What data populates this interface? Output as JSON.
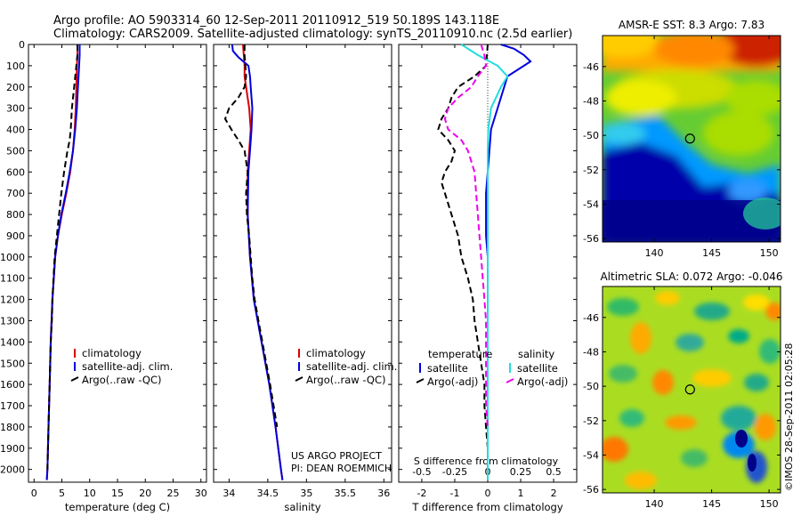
{
  "header": {
    "line1": "Argo profile: AO 5903314_60 12-Sep-2011 20110912_519 50.189S 143.118E",
    "line2": "Climatology: CARS2009. Satellite-adjusted climatology: synTS_20110910.nc (2.5d earlier)"
  },
  "colors": {
    "climatology": "#dd0000",
    "satellite": "#0000dd",
    "argo": "#000000",
    "satellite_s": "#22dddd",
    "argo_s": "#ee00ee"
  },
  "depth_axis": {
    "ticks": [
      0,
      100,
      200,
      300,
      400,
      500,
      600,
      700,
      800,
      900,
      1000,
      1100,
      1200,
      1300,
      1400,
      1500,
      1600,
      1700,
      1800,
      1900,
      2000
    ],
    "ylim": [
      0,
      2060
    ],
    "inverted": true
  },
  "project": {
    "line1": "US ARGO PROJECT",
    "line2": "PI: DEAN ROEMMICH"
  },
  "credit": "©IMOS 28-Sep-2011 02:05:28",
  "chart_data": [
    {
      "type": "line",
      "title": "",
      "xlabel": "temperature (deg C)",
      "ylabel": "",
      "xlim": [
        -1,
        31
      ],
      "xticks": [
        0,
        5,
        10,
        15,
        20,
        25,
        30
      ],
      "ylim": [
        0,
        2060
      ],
      "legend": {
        "placement": "lower-middle",
        "entries": [
          "climatology",
          "satellite-adj. clim.",
          "Argo(..raw -QC)"
        ]
      },
      "series": [
        {
          "name": "climatology",
          "color": "#dd0000",
          "depth": [
            0,
            50,
            100,
            200,
            300,
            400,
            500,
            600,
            700,
            800,
            900,
            1000,
            1200,
            1400,
            1600,
            1800,
            2000,
            2050
          ],
          "values": [
            7.8,
            7.8,
            7.7,
            7.6,
            7.5,
            7.3,
            7.0,
            6.5,
            5.8,
            5.0,
            4.3,
            3.8,
            3.3,
            3.0,
            2.8,
            2.6,
            2.4,
            2.3
          ]
        },
        {
          "name": "satellite-adj. clim.",
          "color": "#0000dd",
          "depth": [
            0,
            50,
            100,
            200,
            300,
            400,
            500,
            600,
            700,
            800,
            900,
            1000,
            1200,
            1400,
            1600,
            1800,
            2000,
            2050
          ],
          "values": [
            8.2,
            8.2,
            8.1,
            7.9,
            7.7,
            7.4,
            7.0,
            6.4,
            5.7,
            4.9,
            4.3,
            3.8,
            3.3,
            3.0,
            2.8,
            2.6,
            2.4,
            2.3
          ]
        },
        {
          "name": "Argo(..raw -QC)",
          "color": "#000000",
          "dashed": true,
          "depth": [
            0,
            50,
            100,
            200,
            300,
            400,
            450,
            500,
            600,
            700,
            800,
            900,
            1000,
            1100,
            1200,
            1300,
            1400,
            1500,
            1600,
            1700,
            1800,
            1900,
            2000
          ],
          "values": [
            7.8,
            7.8,
            7.6,
            7.2,
            6.8,
            6.6,
            6.4,
            6.0,
            5.4,
            4.9,
            4.5,
            4.1,
            3.7,
            3.5,
            3.3,
            3.2,
            3.0,
            2.9,
            2.8,
            2.7,
            2.6,
            2.5,
            2.4
          ]
        }
      ]
    },
    {
      "type": "line",
      "title": "",
      "xlabel": "salinity",
      "ylabel": "",
      "xlim": [
        33.8,
        36.1
      ],
      "xticks": [
        34,
        34.5,
        35,
        35.5,
        36
      ],
      "ylim": [
        0,
        2060
      ],
      "legend": {
        "placement": "lower-right",
        "entries": [
          "climatology",
          "satellite-adj. clim.",
          "Argo(..raw -QC)"
        ]
      },
      "series": [
        {
          "name": "climatology",
          "color": "#dd0000",
          "depth": [
            0,
            50,
            100,
            150,
            200,
            300,
            400,
            500,
            600,
            800,
            1000,
            1200,
            1400,
            1600,
            1800,
            2000,
            2050
          ],
          "values": [
            34.18,
            34.19,
            34.2,
            34.2,
            34.22,
            34.26,
            34.28,
            34.26,
            34.24,
            34.24,
            34.27,
            34.32,
            34.42,
            34.52,
            34.6,
            34.67,
            34.69
          ]
        },
        {
          "name": "satellite-adj. clim.",
          "color": "#0000dd",
          "depth": [
            0,
            30,
            60,
            100,
            150,
            200,
            300,
            400,
            500,
            600,
            800,
            1000,
            1200,
            1400,
            1600,
            1800,
            2000,
            2050
          ],
          "values": [
            34.04,
            34.05,
            34.12,
            34.25,
            34.27,
            34.28,
            34.3,
            34.29,
            34.27,
            34.25,
            34.24,
            34.27,
            34.32,
            34.42,
            34.52,
            34.6,
            34.67,
            34.69
          ]
        },
        {
          "name": "Argo(..raw -QC)",
          "color": "#000000",
          "dashed": true,
          "depth": [
            0,
            50,
            100,
            150,
            200,
            250,
            300,
            350,
            400,
            450,
            500,
            600,
            700,
            800,
            900,
            1000,
            1100,
            1200,
            1300,
            1400,
            1600,
            1800
          ],
          "values": [
            34.2,
            34.2,
            34.21,
            34.22,
            34.2,
            34.12,
            34.0,
            33.95,
            34.03,
            34.12,
            34.2,
            34.24,
            34.22,
            34.23,
            34.26,
            34.28,
            34.3,
            34.33,
            34.38,
            34.43,
            34.53,
            34.62
          ]
        }
      ]
    },
    {
      "type": "line",
      "title": "",
      "xlabel": "T difference from climatology",
      "xlabel2": "S difference from climatology",
      "ylabel": "",
      "xlim": [
        -2.7,
        2.7
      ],
      "xticks": [
        -2,
        -1,
        0,
        1,
        2
      ],
      "xticks2": [
        "-0.5",
        "-0.25",
        "0",
        "0.25",
        "0.5"
      ],
      "xticks2_pos": [
        -2,
        -1,
        0,
        1,
        2
      ],
      "ylim": [
        0,
        2060
      ],
      "legend": {
        "placement": "lower-middle",
        "groups": [
          "temperature",
          "salinity"
        ],
        "entries": [
          "satellite",
          "Argo(-adj)",
          "satellite",
          "Argo(-adj)"
        ]
      },
      "series": [
        {
          "name": "satellite",
          "group": "temperature",
          "color": "#0000dd",
          "depth": [
            0,
            20,
            50,
            80,
            100,
            150,
            200,
            300,
            400,
            500,
            600,
            700,
            800,
            900,
            1000,
            1200,
            1400,
            1600,
            1800,
            2000
          ],
          "values": [
            0.4,
            0.8,
            1.1,
            1.3,
            1.1,
            0.6,
            0.5,
            0.3,
            0.1,
            0.05,
            0.0,
            -0.05,
            -0.05,
            -0.05,
            0,
            0,
            0,
            0,
            0,
            0
          ]
        },
        {
          "name": "Argo(-adj)",
          "group": "temperature",
          "color": "#000000",
          "dashed": true,
          "depth": [
            0,
            100,
            150,
            200,
            250,
            300,
            350,
            400,
            450,
            500,
            550,
            600,
            650,
            700,
            750,
            800,
            850,
            900,
            1000,
            1100,
            1200,
            1300,
            1400,
            1500,
            1600,
            1700,
            1800,
            1900
          ],
          "values": [
            0,
            -0.05,
            -0.4,
            -0.9,
            -1.1,
            -1.2,
            -1.4,
            -1.5,
            -1.2,
            -1.0,
            -1.1,
            -1.3,
            -1.4,
            -1.3,
            -1.2,
            -1.1,
            -1.0,
            -0.9,
            -0.8,
            -0.6,
            -0.45,
            -0.4,
            -0.3,
            -0.2,
            -0.1,
            -0.1,
            -0.05,
            0
          ]
        },
        {
          "name": "satellite",
          "group": "salinity",
          "color": "#22dddd",
          "depth": [
            0,
            50,
            100,
            150,
            200,
            300,
            400,
            500,
            700,
            1000,
            1500,
            2000,
            2050
          ],
          "values": [
            -0.8,
            -0.3,
            0.3,
            0.6,
            0.4,
            0.1,
            0.02,
            0,
            0,
            0,
            0,
            0,
            0
          ]
        },
        {
          "name": "Argo(-adj)",
          "group": "salinity",
          "color": "#ee00ee",
          "dashed": true,
          "depth": [
            0,
            50,
            100,
            150,
            200,
            250,
            300,
            350,
            400,
            450,
            500,
            600,
            700,
            800,
            900,
            1000,
            1100,
            1200,
            1300,
            1400,
            1500,
            1600,
            1700,
            1800
          ],
          "values": [
            -0.2,
            -0.1,
            -0.05,
            -0.3,
            -0.5,
            -0.9,
            -1.2,
            -1.3,
            -1.2,
            -0.8,
            -0.6,
            -0.4,
            -0.35,
            -0.3,
            -0.25,
            -0.2,
            -0.15,
            -0.1,
            -0.05,
            -0.05,
            -0.05,
            -0.05,
            -0.05,
            0
          ]
        }
      ]
    },
    {
      "type": "heatmap",
      "title": "AMSR-E SST: 8.3 Argo: 7.83",
      "xlabel": "",
      "ylabel": "",
      "xlim": [
        135.5,
        151
      ],
      "ylim": [
        -56.2,
        -44.2
      ],
      "xticks": [
        140,
        145,
        150
      ],
      "yticks": [
        -46,
        -48,
        -50,
        -52,
        -54,
        -56
      ],
      "marker": {
        "lon": 143.118,
        "lat": -50.189
      }
    },
    {
      "type": "heatmap",
      "title": "Altimetric SLA: 0.072 Argo: -0.046",
      "xlabel": "",
      "ylabel": "",
      "xlim": [
        135.5,
        151
      ],
      "ylim": [
        -56.2,
        -44.2
      ],
      "xticks": [
        140,
        145,
        150
      ],
      "yticks": [
        -46,
        -48,
        -50,
        -52,
        -54,
        -56
      ],
      "marker": {
        "lon": 143.118,
        "lat": -50.189
      }
    }
  ]
}
